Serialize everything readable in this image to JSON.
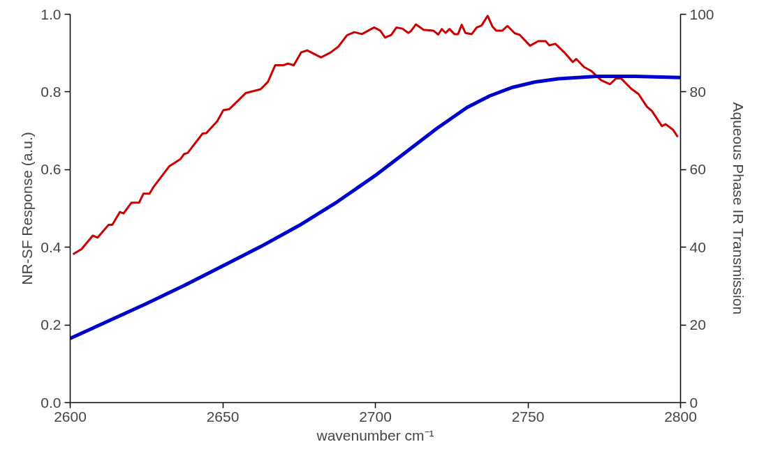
{
  "chart_data": {
    "type": "line",
    "xlabel": "wavenumber cm⁻¹",
    "ylabel": "NR-SF Response (a.u.)",
    "y2label": "Aqueous Phase IR Transmission",
    "xlim": [
      2600,
      2800
    ],
    "xticks": [
      2600,
      2650,
      2700,
      2750,
      2800
    ],
    "ylim": [
      0,
      1
    ],
    "yticks": [
      {
        "value": 0,
        "label": "0.0"
      },
      0.2,
      0.4,
      0.6,
      0.8,
      {
        "value": 1,
        "label": "1.0"
      }
    ],
    "y2lim": [
      0,
      100
    ],
    "y2ticks": [
      0,
      20,
      40,
      60,
      80,
      100
    ],
    "grid": false,
    "series": [
      {
        "color": "#cc0000",
        "x": [
          2600.9,
          2603.7,
          2607.4,
          2609,
          2612.6,
          2613.8,
          2616.3,
          2617.5,
          2620.1,
          2622.6,
          2624,
          2626,
          2627.2,
          2632.4,
          2636.1,
          2637.3,
          2638.5,
          2643.4,
          2644.6,
          2648.2,
          2650.2,
          2652.2,
          2657.5,
          2662.4,
          2664.8,
          2667.2,
          2670,
          2671.3,
          2673.3,
          2675.7,
          2677.7,
          2682.2,
          2685.4,
          2687.9,
          2690.7,
          2693.1,
          2695.6,
          2699.6,
          2701.6,
          2703.2,
          2705.2,
          2706.9,
          2708.9,
          2710.8,
          2711.7,
          2713.3,
          2715.8,
          2719,
          2720.6,
          2721.8,
          2723,
          2724.3,
          2725.9,
          2727.1,
          2728.3,
          2729.5,
          2731.6,
          2733.2,
          2734.8,
          2736.8,
          2738.4,
          2739.6,
          2741.6,
          2743.3,
          2745.7,
          2747.3,
          2750.7,
          2753.4,
          2755.8,
          2757,
          2759,
          2761.9,
          2764.7,
          2765.8,
          2768.4,
          2770.8,
          2774,
          2776.9,
          2778.9,
          2780.5,
          2783.9,
          2786.2,
          2789,
          2790.6,
          2793.9,
          2795.1,
          2797.5,
          2799.1
        ],
        "values": [
          0.382,
          0.395,
          0.43,
          0.425,
          0.458,
          0.458,
          0.491,
          0.487,
          0.515,
          0.515,
          0.538,
          0.538,
          0.554,
          0.608,
          0.627,
          0.64,
          0.643,
          0.693,
          0.694,
          0.725,
          0.753,
          0.756,
          0.797,
          0.807,
          0.826,
          0.869,
          0.869,
          0.873,
          0.869,
          0.902,
          0.907,
          0.889,
          0.902,
          0.917,
          0.946,
          0.954,
          0.949,
          0.966,
          0.958,
          0.94,
          0.947,
          0.966,
          0.963,
          0.952,
          0.957,
          0.974,
          0.96,
          0.958,
          0.948,
          0.962,
          0.952,
          0.962,
          0.949,
          0.949,
          0.973,
          0.952,
          0.949,
          0.966,
          0.971,
          0.996,
          0.968,
          0.958,
          0.958,
          0.97,
          0.951,
          0.947,
          0.919,
          0.931,
          0.931,
          0.92,
          0.924,
          0.902,
          0.877,
          0.885,
          0.864,
          0.854,
          0.83,
          0.82,
          0.835,
          0.835,
          0.808,
          0.795,
          0.762,
          0.751,
          0.712,
          0.717,
          0.703,
          0.684
        ]
      },
      {
        "color": "#0000cc",
        "axis": "y2",
        "x": [
          2600,
          2612.5,
          2625,
          2637.5,
          2650,
          2662.5,
          2675,
          2687.5,
          2700,
          2710,
          2720,
          2730,
          2737.5,
          2745,
          2752.5,
          2760,
          2772.5,
          2785,
          2800
        ],
        "values": [
          16.5,
          21,
          25.5,
          30.2,
          35.2,
          40.2,
          45.6,
          51.7,
          58.5,
          64.5,
          70.5,
          76,
          79,
          81.2,
          82.6,
          83.4,
          84,
          84,
          83.7
        ]
      }
    ]
  }
}
